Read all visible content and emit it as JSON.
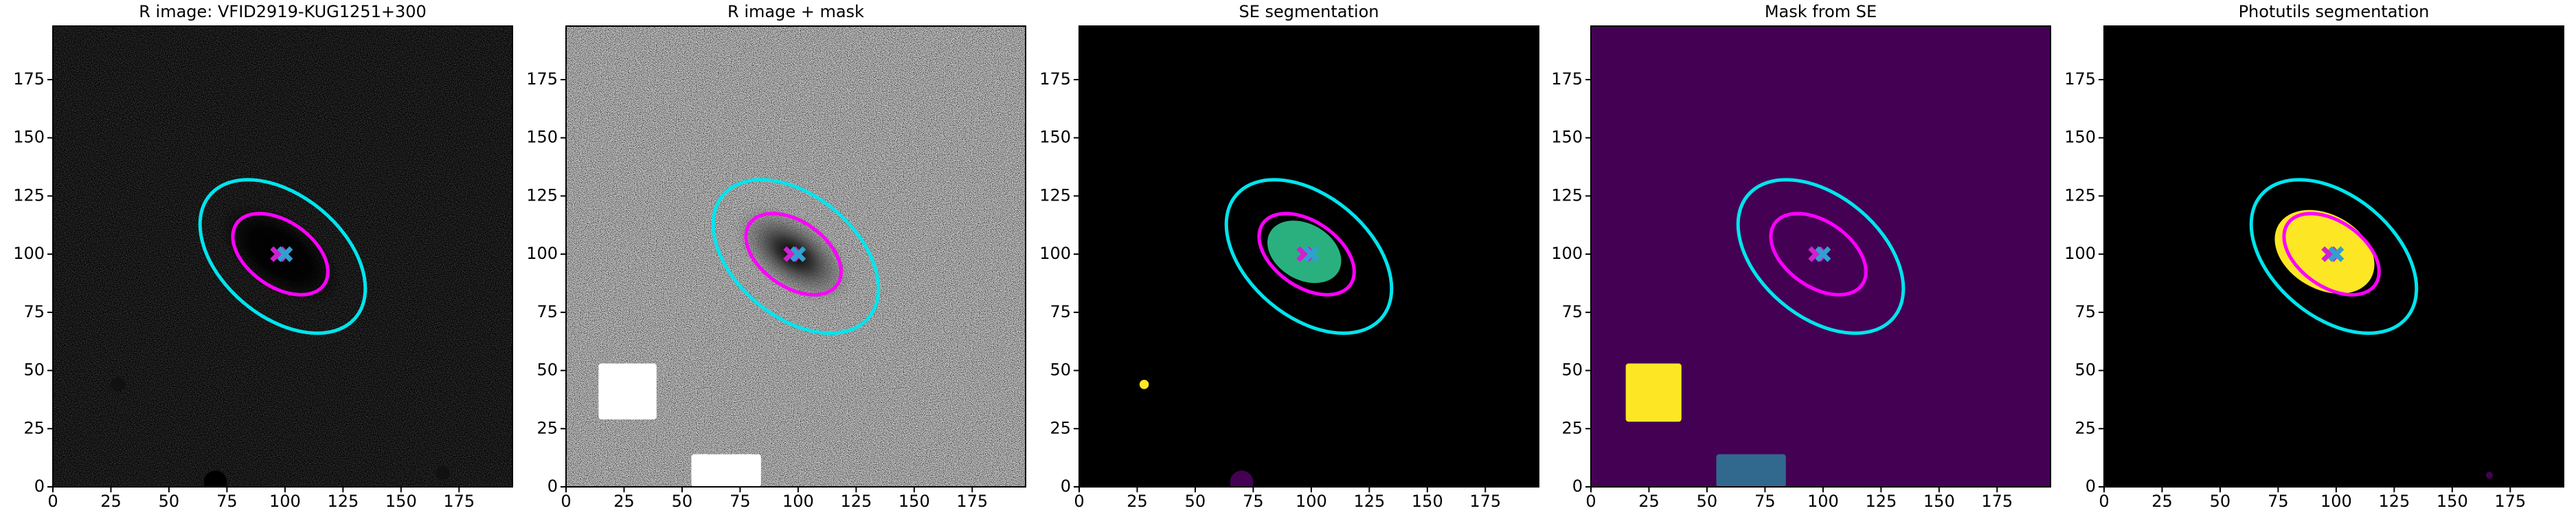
{
  "chart_data": [
    {
      "type": "image",
      "title": "R image: VFID2919-KUG1251+300",
      "xlim": [
        0,
        198
      ],
      "ylim": [
        0,
        198
      ],
      "xticks": [
        0,
        25,
        50,
        75,
        100,
        125,
        150,
        175
      ],
      "yticks": [
        0,
        25,
        50,
        75,
        100,
        125,
        150,
        175
      ],
      "ellipses": [
        {
          "cx": 99,
          "cy": 99,
          "a": 41,
          "b": 26,
          "angle": -40,
          "color": "#00e5ee"
        },
        {
          "cx": 98,
          "cy": 100,
          "a": 23,
          "b": 14,
          "angle": -35,
          "color": "#ff00ff"
        }
      ],
      "markers": [
        {
          "x": 97,
          "y": 100,
          "color": "#d020d0"
        },
        {
          "x": 100,
          "y": 100,
          "color": "#30a0d0"
        }
      ]
    },
    {
      "type": "image",
      "title": "R image + mask",
      "xlim": [
        0,
        198
      ],
      "ylim": [
        0,
        198
      ],
      "xticks": [
        0,
        25,
        50,
        75,
        100,
        125,
        150,
        175
      ],
      "yticks": [
        0,
        25,
        50,
        75,
        100,
        125,
        150,
        175
      ],
      "ellipses": [
        {
          "cx": 99,
          "cy": 99,
          "a": 41,
          "b": 26,
          "angle": -40,
          "color": "#00e5ee"
        },
        {
          "cx": 98,
          "cy": 100,
          "a": 23,
          "b": 14,
          "angle": -35,
          "color": "#ff00ff"
        }
      ],
      "markers": [
        {
          "x": 97,
          "y": 100,
          "color": "#d020d0"
        },
        {
          "x": 100,
          "y": 100,
          "color": "#30a0d0"
        }
      ]
    },
    {
      "type": "image",
      "title": "SE segmentation",
      "xlim": [
        0,
        198
      ],
      "ylim": [
        0,
        198
      ],
      "xticks": [
        0,
        25,
        50,
        75,
        100,
        125,
        150,
        175
      ],
      "yticks": [
        0,
        25,
        50,
        75,
        100,
        125,
        150,
        175
      ],
      "ellipses": [
        {
          "cx": 99,
          "cy": 99,
          "a": 41,
          "b": 26,
          "angle": -40,
          "color": "#00e5ee"
        },
        {
          "cx": 98,
          "cy": 100,
          "a": 23,
          "b": 14,
          "angle": -35,
          "color": "#ff00ff"
        }
      ],
      "markers": [
        {
          "x": 97,
          "y": 100,
          "color": "#d020d0"
        },
        {
          "x": 100,
          "y": 100,
          "color": "#30a0d0"
        }
      ]
    },
    {
      "type": "image",
      "title": "Mask from SE",
      "xlim": [
        0,
        198
      ],
      "ylim": [
        0,
        198
      ],
      "xticks": [
        0,
        25,
        50,
        75,
        100,
        125,
        150,
        175
      ],
      "yticks": [
        0,
        25,
        50,
        75,
        100,
        125,
        150,
        175
      ],
      "ellipses": [
        {
          "cx": 99,
          "cy": 99,
          "a": 41,
          "b": 26,
          "angle": -40,
          "color": "#00e5ee"
        },
        {
          "cx": 98,
          "cy": 100,
          "a": 23,
          "b": 14,
          "angle": -35,
          "color": "#ff00ff"
        }
      ],
      "markers": [
        {
          "x": 97,
          "y": 100,
          "color": "#d020d0"
        },
        {
          "x": 100,
          "y": 100,
          "color": "#30a0d0"
        }
      ]
    },
    {
      "type": "image",
      "title": "Photutils segmentation",
      "xlim": [
        0,
        198
      ],
      "ylim": [
        0,
        198
      ],
      "xticks": [
        0,
        25,
        50,
        75,
        100,
        125,
        150,
        175
      ],
      "yticks": [
        0,
        25,
        50,
        75,
        100,
        125,
        150,
        175
      ],
      "ellipses": [
        {
          "cx": 99,
          "cy": 99,
          "a": 41,
          "b": 26,
          "angle": -40,
          "color": "#00e5ee"
        },
        {
          "cx": 98,
          "cy": 100,
          "a": 23,
          "b": 14,
          "angle": -35,
          "color": "#ff00ff"
        }
      ],
      "markers": [
        {
          "x": 97,
          "y": 100,
          "color": "#d020d0"
        },
        {
          "x": 100,
          "y": 100,
          "color": "#30a0d0"
        }
      ]
    }
  ]
}
